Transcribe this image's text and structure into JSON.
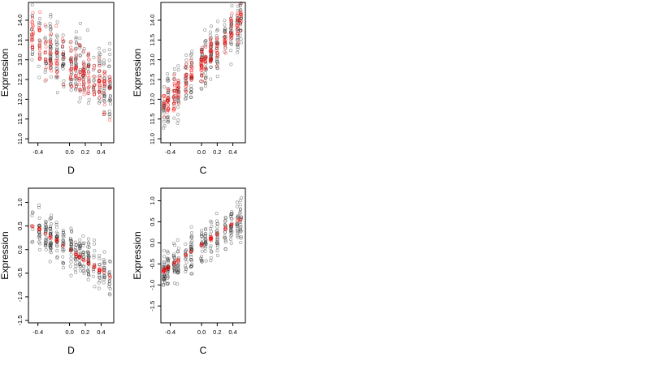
{
  "chart_data": [
    {
      "type": "scatter",
      "xlabel": "D",
      "ylabel": "Expression",
      "xlim": [
        -0.52,
        0.56
      ],
      "ylim": [
        10.9,
        14.45
      ],
      "xticks": [
        -0.4,
        0.0,
        0.2,
        0.4
      ],
      "xtick_labels": [
        "-0.4",
        "0.0",
        "0.2",
        "0.4"
      ],
      "yticks": [
        11.0,
        11.5,
        12.0,
        12.5,
        13.0,
        13.5,
        14.0
      ],
      "ytick_labels": [
        "11.0",
        "11.5",
        "12.0",
        "12.5",
        "13.0",
        "13.5",
        "14.0"
      ],
      "x_levels": [
        -0.47,
        -0.38,
        -0.3,
        -0.24,
        -0.16,
        -0.08,
        0.02,
        0.08,
        0.13,
        0.18,
        0.24,
        0.31,
        0.38,
        0.44,
        0.51
      ],
      "series": [
        {
          "role": "observed",
          "color": "#000000",
          "seed": 11,
          "trend": {
            "intercept": 12.95,
            "slope": -1.4
          },
          "spread": 0.75,
          "n": 300
        },
        {
          "role": "fitted",
          "color": "#ff0000",
          "seed": 23,
          "trend": {
            "intercept": 12.9,
            "slope": -1.4
          },
          "spread": 0.55,
          "n": 200
        }
      ]
    },
    {
      "type": "scatter",
      "xlabel": "C",
      "ylabel": "Expression",
      "xlim": [
        -0.52,
        0.56
      ],
      "ylim": [
        10.9,
        14.45
      ],
      "xticks": [
        -0.4,
        0.0,
        0.2,
        0.4
      ],
      "xtick_labels": [
        "-0.4",
        "0.0",
        "0.2",
        "0.4"
      ],
      "yticks": [
        11.0,
        11.5,
        12.0,
        12.5,
        13.0,
        13.5,
        14.0
      ],
      "ytick_labels": [
        "11.0",
        "11.5",
        "12.0",
        "12.5",
        "13.0",
        "13.5",
        "14.0"
      ],
      "x_levels": [
        -0.48,
        -0.43,
        -0.35,
        -0.3,
        -0.2,
        -0.13,
        0.0,
        0.05,
        0.12,
        0.2,
        0.3,
        0.38,
        0.46,
        0.5
      ],
      "series": [
        {
          "role": "observed",
          "color": "#000000",
          "seed": 37,
          "trend": {
            "intercept": 12.9,
            "slope": 2.1
          },
          "spread": 0.55,
          "n": 300
        },
        {
          "role": "fitted",
          "color": "#ff0000",
          "seed": 41,
          "trend": {
            "intercept": 12.9,
            "slope": 2.1
          },
          "spread": 0.35,
          "n": 200
        }
      ]
    },
    {
      "type": "scatter",
      "xlabel": "D",
      "ylabel": "Expression",
      "xlim": [
        -0.52,
        0.56
      ],
      "ylim": [
        -1.55,
        1.3
      ],
      "xticks": [
        -0.4,
        0.0,
        0.2,
        0.4
      ],
      "xtick_labels": [
        "-0.4",
        "0.0",
        "0.2",
        "0.4"
      ],
      "yticks": [
        -1.5,
        -1.0,
        -0.5,
        0.0,
        0.5,
        1.0
      ],
      "ytick_labels": [
        "-1.5",
        "-1.0",
        "-0.5",
        "0.0",
        "0.5",
        "1.0"
      ],
      "x_levels": [
        -0.47,
        -0.38,
        -0.3,
        -0.24,
        -0.16,
        -0.08,
        0.02,
        0.08,
        0.13,
        0.18,
        0.24,
        0.31,
        0.38,
        0.44,
        0.51
      ],
      "series": [
        {
          "role": "observed",
          "color": "#000000",
          "seed": 53,
          "trend": {
            "intercept": 0.0,
            "slope": -1.1
          },
          "spread": 0.38,
          "n": 300
        },
        {
          "role": "fitted",
          "color": "#ff0000",
          "seed": 59,
          "trend": {
            "intercept": 0.0,
            "slope": -1.1
          },
          "spread": 0.04,
          "n": 60
        }
      ]
    },
    {
      "type": "scatter",
      "xlabel": "C",
      "ylabel": "Expression",
      "xlim": [
        -0.52,
        0.56
      ],
      "ylim": [
        -1.9,
        1.3
      ],
      "xticks": [
        -0.4,
        0.0,
        0.2,
        0.4
      ],
      "xtick_labels": [
        "-0.4",
        "0.0",
        "0.2",
        "0.4"
      ],
      "yticks": [
        -1.5,
        -1.0,
        -0.5,
        0.0,
        0.5,
        1.0
      ],
      "ytick_labels": [
        "-1.5",
        "-1.0",
        "-0.5",
        "0.0",
        "0.5",
        "1.0"
      ],
      "x_levels": [
        -0.48,
        -0.43,
        -0.35,
        -0.3,
        -0.2,
        -0.13,
        0.0,
        0.05,
        0.12,
        0.2,
        0.3,
        0.38,
        0.46,
        0.5
      ],
      "series": [
        {
          "role": "observed",
          "color": "#000000",
          "seed": 67,
          "trend": {
            "intercept": -0.05,
            "slope": 1.25
          },
          "spread": 0.38,
          "n": 300
        },
        {
          "role": "fitted",
          "color": "#ff0000",
          "seed": 71,
          "trend": {
            "intercept": -0.05,
            "slope": 1.25
          },
          "spread": 0.04,
          "n": 60
        }
      ]
    }
  ]
}
